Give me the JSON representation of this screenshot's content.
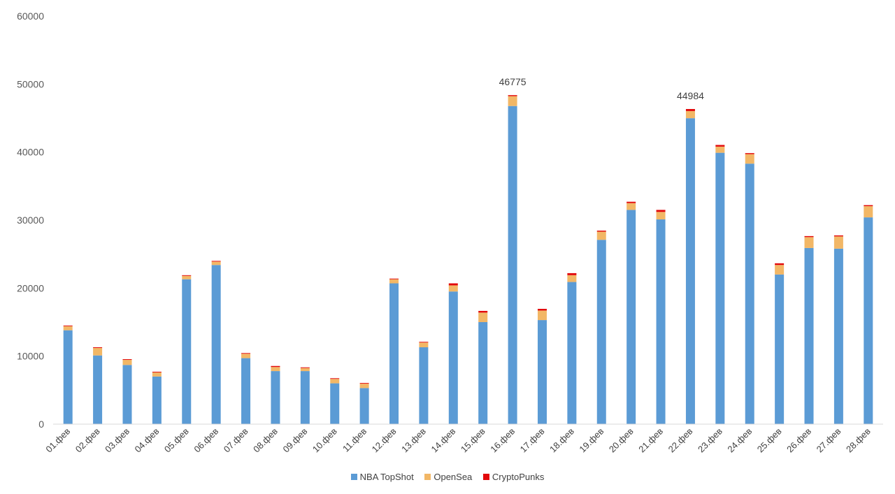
{
  "chart_data": {
    "type": "bar",
    "stacked": true,
    "categories": [
      "01.фев",
      "02.фев",
      "03.фев",
      "04.фев",
      "05.фев",
      "06.фев",
      "07.фев",
      "08.фев",
      "09.фев",
      "10.фев",
      "11.фев",
      "12.фев",
      "13.фев",
      "14.фев",
      "15.фев",
      "16.фев",
      "17.фев",
      "18.фев",
      "19.фев",
      "20.фев",
      "21.фев",
      "22.фев",
      "23.фев",
      "24.фев",
      "25.фев",
      "26.фев",
      "27.фев",
      "28.фев"
    ],
    "series": [
      {
        "name": "NBA TopShot",
        "color": "#5b9bd5",
        "values": [
          13800,
          10100,
          8700,
          7000,
          21300,
          23400,
          9700,
          7800,
          7800,
          6000,
          5300,
          20700,
          11300,
          19500,
          15000,
          46775,
          15300,
          20900,
          27100,
          31500,
          30100,
          44984,
          39900,
          38300,
          22000,
          25900,
          25800,
          30400
        ]
      },
      {
        "name": "OpenSea",
        "color": "#f2b766",
        "values": [
          600,
          1100,
          750,
          600,
          500,
          500,
          650,
          600,
          450,
          650,
          650,
          600,
          700,
          900,
          1400,
          1450,
          1400,
          1000,
          1200,
          1000,
          1100,
          1050,
          900,
          1400,
          1400,
          1600,
          1800,
          1650
        ]
      },
      {
        "name": "CryptoPunks",
        "color": "#e2090b",
        "values": [
          100,
          100,
          100,
          100,
          100,
          100,
          100,
          150,
          100,
          100,
          100,
          100,
          100,
          300,
          250,
          150,
          250,
          300,
          150,
          200,
          300,
          300,
          250,
          150,
          250,
          150,
          150,
          150
        ]
      }
    ],
    "data_labels": [
      {
        "category": "16.фев",
        "text": "46775"
      },
      {
        "category": "22.фев",
        "text": "44984"
      }
    ],
    "yticks": [
      "0",
      "10000",
      "20000",
      "30000",
      "40000",
      "50000",
      "60000"
    ],
    "ylim": [
      0,
      60000
    ],
    "grid": false,
    "legend": "bottom"
  }
}
